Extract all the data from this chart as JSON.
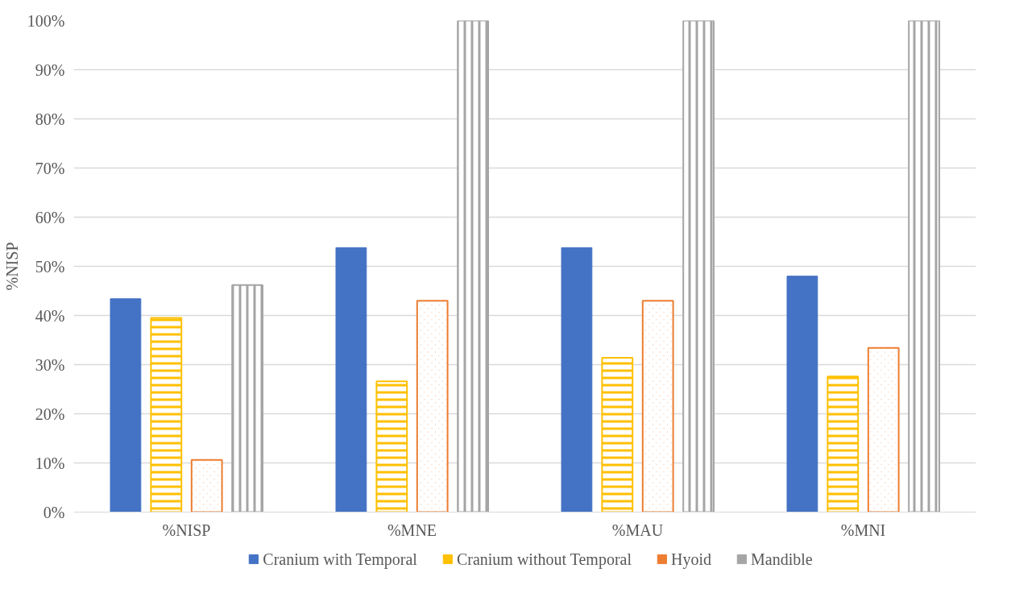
{
  "chart_data": {
    "type": "bar",
    "ylabel": "%NISP",
    "categories": [
      "%NISP",
      "%MNE",
      "%MAU",
      "%MNI"
    ],
    "series": [
      {
        "name": "Cranium with Temporal",
        "color": "#4472c4",
        "values": [
          43.4,
          53.8,
          53.8,
          48.0
        ]
      },
      {
        "name": "Cranium without Temporal",
        "color": "#ffc000",
        "values": [
          39.5,
          26.6,
          31.4,
          27.6
        ]
      },
      {
        "name": "Hyoid",
        "color": "#ed7d31",
        "values": [
          10.6,
          43.0,
          43.0,
          33.4
        ]
      },
      {
        "name": "Mandible",
        "color": "#a5a5a5",
        "values": [
          46.2,
          100,
          100,
          100
        ]
      }
    ],
    "ylim": [
      0,
      100
    ],
    "yticks": [
      {
        "value": 0,
        "label": "0%"
      },
      {
        "value": 10,
        "label": "10%"
      },
      {
        "value": 20,
        "label": "20%"
      },
      {
        "value": 30,
        "label": "30%"
      },
      {
        "value": 40,
        "label": "40%"
      },
      {
        "value": 50,
        "label": "50%"
      },
      {
        "value": 60,
        "label": "60%"
      },
      {
        "value": 70,
        "label": "70%"
      },
      {
        "value": 80,
        "label": "80%"
      },
      {
        "value": 90,
        "label": "90%"
      },
      {
        "value": 100,
        "label": "100%"
      }
    ],
    "grid": "y",
    "legend": "bottom"
  }
}
